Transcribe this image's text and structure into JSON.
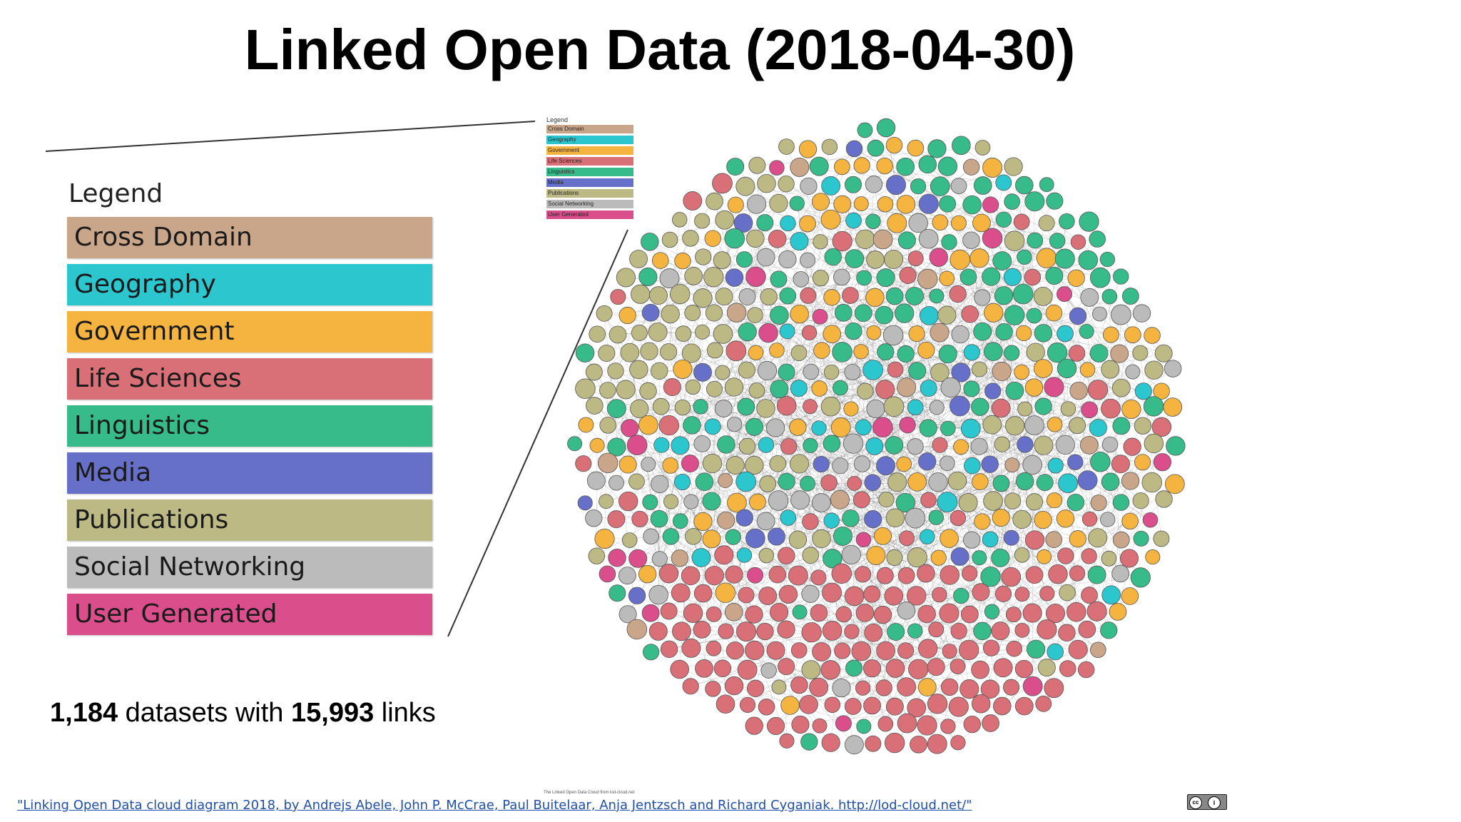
{
  "title": "Linked Open Data (2018-04-30)",
  "legend": {
    "title": "Legend",
    "items": [
      {
        "label": "Cross Domain",
        "color": "#c9a689"
      },
      {
        "label": "Geography",
        "color": "#2cc6cf"
      },
      {
        "label": "Government",
        "color": "#f4b43f"
      },
      {
        "label": "Life Sciences",
        "color": "#d97078"
      },
      {
        "label": "Linguistics",
        "color": "#37bb8a"
      },
      {
        "label": "Media",
        "color": "#6670c9"
      },
      {
        "label": "Publications",
        "color": "#bdb985"
      },
      {
        "label": "Social Networking",
        "color": "#bbbbbb"
      },
      {
        "label": "User Generated",
        "color": "#d94e8b"
      }
    ]
  },
  "stats": {
    "datasets": "1,184",
    "mid_text": " datasets with ",
    "links": "15,993",
    "end_text": " links"
  },
  "credit": "\"Linking Open Data cloud diagram 2018, by Andrejs Abele, John P. McCrae, Paul Buitelaar, Anja Jentzsch and Richard Cyganiak. http://lod-cloud.net/\"",
  "cloud_caption": "The Linked Open Data Cloud from lod-cloud.net",
  "license_badge": {
    "left": "cc",
    "right": "i"
  }
}
